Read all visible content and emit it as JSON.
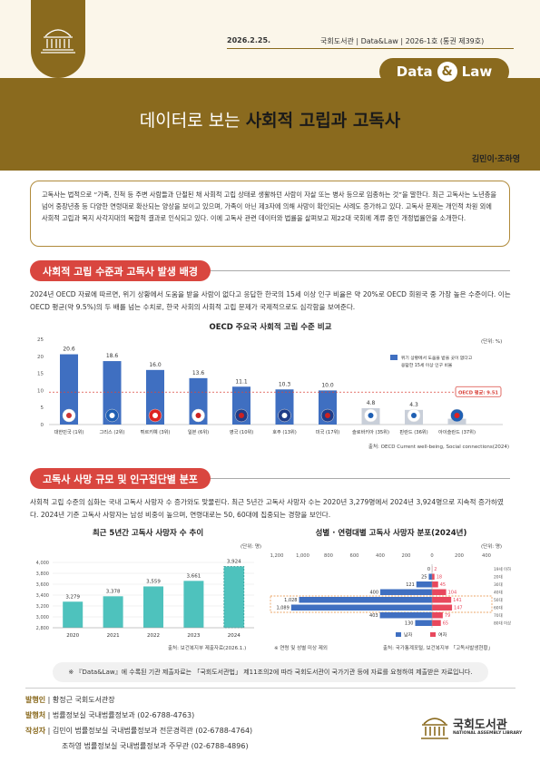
{
  "header": {
    "date": "2026.2.25.",
    "issue": "국회도서관 | Data&Law | 2026-1호 (통권 제39호)",
    "badge_left": "Data",
    "badge_amp": "&",
    "badge_right": "Law",
    "title_light": "데이터로 보는 ",
    "title_bold": "사회적 고립과 고독사",
    "authors": "김민이·조하영"
  },
  "summary": "고독사는 법적으로 “가족, 친척 등 주변 사람들과 단절된 채 사회적 고립 상태로 생활하던 사람이 자살 또는 병사 등으로 임종하는 것”을 말한다. 최근 고독사는 노년층을 넘어 중장년층 등 다양한 연령대로 확산되는 양상을 보이고 있으며, 가족이 아닌 제3자에 의해 사망이 확인되는 사례도 증가하고 있다. 고독사 문제는 개인적 차원 외에 사회적 고립과 복지 사각지대의 복합적 결과로 인식되고 있다. 이에 고독사 관련 데이터와 법률을 살펴보고 제22대 국회에 계류 중인 개정법률안을 소개한다.",
  "section1": {
    "title": "사회적 고립 수준과 고독사 발생 배경",
    "paragraph": "2024년 OECD 자료에 따르면, 위기 상황에서 도움을 받을 사람이 없다고 응답한 한국의 15세 이상 인구 비율은 약 20%로 OECD 회원국 중 가장 높은 수준이다. 이는 OECD 평균(약 9.5%)의 두 배를 넘는 수치로, 한국 사회의 사회적 고립 문제가 국제적으로도 심각함을 보여준다."
  },
  "section2": {
    "title": "고독사 사망 규모 및 인구집단별 분포",
    "paragraph": "사회적 고립 수준의 심화는 국내 고독사 사망자 수 증가와도 맞물린다. 최근 5년간 고독사 사망자 수는 2020년 3,279명에서 2024년 3,924명으로 지속적 증가하였다. 2024년 기준 고독사 사망자는 남성 비중이 높으며, 연령대로는 50, 60대에 집중되는 경향을 보인다."
  },
  "colors": {
    "gold": "#8a6a1e",
    "blue": "#3f6fc1",
    "teal": "#4ec2bd",
    "pink": "#e8485d",
    "red": "#d9463f"
  },
  "chart_data": [
    {
      "type": "bar",
      "title": "OECD 주요국 사회적 고립 수준 비교",
      "unit": "(단위: %)",
      "categories": [
        "대한민국 (1위)",
        "그리스 (2위)",
        "튀르키예 (3위)",
        "일본 (6위)",
        "영국 (10위)",
        "호주 (13위)",
        "미국 (17위)",
        "슬로바키아 (35위)",
        "핀란드 (36위)",
        "아이슬란드 (37위)"
      ],
      "values": [
        20.6,
        18.6,
        16.0,
        13.6,
        11.1,
        10.3,
        10.0,
        4.8,
        4.3,
        1.7
      ],
      "value_labels": [
        "20.6",
        "18.6",
        "16.0",
        "13.6",
        "11.1",
        "10.3",
        "10.0",
        "4.8",
        "4.3",
        "1.7"
      ],
      "highlight_count": 7,
      "yticks": [
        "0",
        "5",
        "10",
        "15",
        "20",
        "25"
      ],
      "ylim": [
        0,
        25
      ],
      "average_value": 9.5,
      "average_label": "OECD 평균: 9.51",
      "legend": "위기 상황에서 도움을 받을 곳이 없다고 응답한 15세 이상 인구 비율",
      "flags": [
        "kr",
        "gr",
        "tr",
        "jp",
        "gb",
        "au",
        "us",
        "sk",
        "fi",
        "is"
      ],
      "source": "출처: OECD Current well-being, Social connections(2024)"
    },
    {
      "type": "bar",
      "title": "최근 5년간 고독사 사망자 수 추이",
      "unit": "(단위: 명)",
      "categories": [
        "2020",
        "2021",
        "2022",
        "2023",
        "2024"
      ],
      "values": [
        3279,
        3378,
        3559,
        3661,
        3924
      ],
      "value_labels": [
        "3,279",
        "3,378",
        "3,559",
        "3,661",
        "3,924"
      ],
      "yticks": [
        "2,800",
        "3,000",
        "3,200",
        "3,400",
        "3,600",
        "3,800",
        "4,000"
      ],
      "ylim": [
        2800,
        4000
      ],
      "source": "출처: 보건복지부 제출자료(2026.1.)"
    },
    {
      "type": "bar",
      "title": "성별 · 연령대별 고독사 사망자 분포(2024년)",
      "unit": "(단위: 명)",
      "xticks_left": [
        "1,200",
        "1,000",
        "800",
        "600",
        "400",
        "200"
      ],
      "xticks_right": [
        "0",
        "200",
        "400"
      ],
      "categories": [
        "19세 이하",
        "20대",
        "30대",
        "40대",
        "50대",
        "60대",
        "70대",
        "80대 이상"
      ],
      "series": [
        {
          "name": "남자",
          "values": [
            0,
            25,
            121,
            400,
            1028,
            1089,
            403,
            130
          ],
          "labels": [
            "0",
            "25",
            "121",
            "400",
            "1,028",
            "1,089",
            "403",
            "130"
          ]
        },
        {
          "name": "여자",
          "values": [
            2,
            18,
            45,
            104,
            141,
            147,
            79,
            65
          ],
          "labels": [
            "2",
            "18",
            "45",
            "104",
            "141",
            "147",
            "79",
            "65"
          ]
        }
      ],
      "note": "※ 연령 및 성별 미상 제외",
      "source": "출처: 국가통계포털, 보건복지부 「고독사발생현황」"
    }
  ],
  "footer": {
    "note": "※ 『Data&Law』에 수록된 기관 제출자료는 「국회도서관법」 제11조의2에 따라 국회도서관이 국가기관 등에 자료를 요청하여 제출받은 자료입니다.",
    "publisher_label": "발행인",
    "publisher": "황정근 국회도서관장",
    "issuer_label": "발행처",
    "issuer": "법률정보실 국내법률정보과 (02-6788-4763)",
    "writer_label": "작성자",
    "writer1": "김민이 법률정보실 국내법률정보과 전문경력관 (02-6788-4764)",
    "writer2": "조하영 법률정보실 국내법률정보과 주무관 (02-6788-4896)",
    "logo_text": "국회도서관",
    "logo_sub": "NATIONAL ASSEMBLY LIBRARY"
  }
}
